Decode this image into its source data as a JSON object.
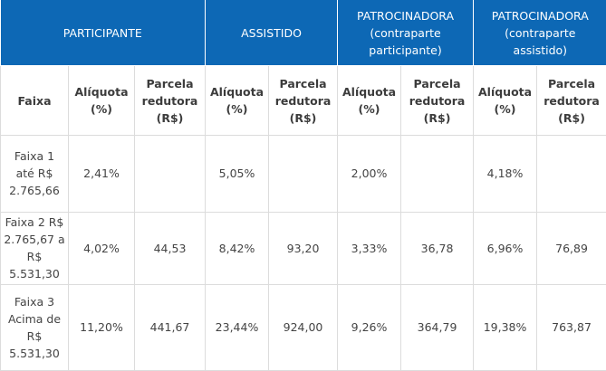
{
  "group_headers": {
    "participante": "PARTICIPANTE",
    "assistido": "ASSISTIDO",
    "patrocinadora_participante": "PATROCINADORA (contraparte participante)",
    "patrocinadora_assistido": "PATROCINADORA (contraparte assistido)"
  },
  "sub_headers": {
    "faixa": "Faixa",
    "aliquota": "Alíquota (%)",
    "parcela": "Parcela redutora (R$)"
  },
  "rows": [
    {
      "faixa": "Faixa 1 até R$ 2.765,66",
      "participante_aliquota": "2,41%",
      "participante_parcela": "",
      "assistido_aliquota": "5,05%",
      "assistido_parcela": "",
      "patr_part_aliquota": "2,00%",
      "patr_part_parcela": "",
      "patr_assist_aliquota": "4,18%",
      "patr_assist_parcela": ""
    },
    {
      "faixa": "Faixa 2 R$ 2.765,67 a R$ 5.531,30",
      "participante_aliquota": "4,02%",
      "participante_parcela": "44,53",
      "assistido_aliquota": "8,42%",
      "assistido_parcela": "93,20",
      "patr_part_aliquota": "3,33%",
      "patr_part_parcela": "36,78",
      "patr_assist_aliquota": "6,96%",
      "patr_assist_parcela": "76,89"
    },
    {
      "faixa": "Faixa 3 Acima de R$ 5.531,30",
      "participante_aliquota": "11,20%",
      "participante_parcela": "441,67",
      "assistido_aliquota": "23,44%",
      "assistido_parcela": "924,00",
      "patr_part_aliquota": "9,26%",
      "patr_part_parcela": "364,79",
      "patr_assist_aliquota": "19,38%",
      "patr_assist_parcela": "763,87"
    }
  ],
  "colors": {
    "header_bg": "#0d68b5",
    "header_text": "#ffffff",
    "border": "#dcdcdc",
    "text": "#444444"
  }
}
